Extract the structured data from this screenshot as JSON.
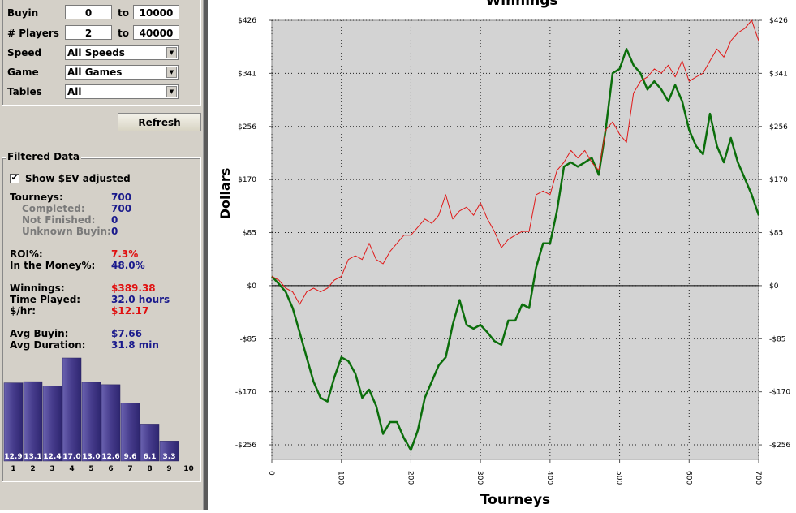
{
  "filters": {
    "ranges": [
      {
        "label": "Buyin",
        "from": "0",
        "to": "10000"
      },
      {
        "label": "# Players",
        "from": "2",
        "to": "40000"
      }
    ],
    "range_separator": "to",
    "selects": [
      {
        "label": "Speed",
        "value": "All Speeds"
      },
      {
        "label": "Game",
        "value": "All Games"
      },
      {
        "label": "Tables",
        "value": "All"
      }
    ],
    "button": "Refresh"
  },
  "filtered_data": {
    "title": "Filtered Data",
    "checkbox": {
      "label": "Show $EV adjusted",
      "checked": true
    },
    "stats": [
      [
        {
          "label": "Tourneys:",
          "value": "700",
          "color": "#1a1a8c"
        },
        {
          "label": "Completed:",
          "value": "700",
          "color": "#1a1a8c",
          "sub": true
        },
        {
          "label": "Not Finished:",
          "value": "0",
          "color": "#1a1a8c",
          "sub": true
        },
        {
          "label": "Unknown Buyin:",
          "value": "0",
          "color": "#1a1a8c",
          "sub": true
        }
      ],
      [
        {
          "label": "ROI%:",
          "value": "7.3%",
          "color": "#e01010"
        },
        {
          "label": "In the Money%:",
          "value": "48.0%",
          "color": "#1a1a8c"
        }
      ],
      [
        {
          "label": "Winnings:",
          "value": "$389.38",
          "color": "#e01010"
        },
        {
          "label": "Time Played:",
          "value": "32.0 hours",
          "color": "#1a1a8c"
        },
        {
          "label": "$/hr:",
          "value": "$12.17",
          "color": "#e01010"
        }
      ],
      [
        {
          "label": "Avg Buyin:",
          "value": "$7.66",
          "color": "#1a1a8c"
        },
        {
          "label": "Avg Duration:",
          "value": "31.8 min",
          "color": "#1a1a8c"
        }
      ]
    ],
    "histogram": {
      "type": "bar",
      "categories": [
        "1",
        "2",
        "3",
        "4",
        "5",
        "6",
        "7",
        "8",
        "9",
        "10"
      ],
      "values": [
        12.9,
        13.1,
        12.4,
        17.0,
        13.0,
        12.6,
        9.6,
        6.1,
        3.3,
        null
      ],
      "value_labels": [
        "12.9",
        "13.1",
        "12.4",
        "17.0",
        "13.0",
        "12.6",
        "9.6",
        "6.1",
        "3.3",
        null
      ],
      "color": "#463c8c"
    }
  },
  "chart_data": {
    "type": "line",
    "title": "Winnings",
    "x_label": "Tourneys",
    "y_label": "Dollars",
    "x": [
      0,
      10,
      20,
      30,
      40,
      50,
      60,
      70,
      80,
      90,
      100,
      110,
      120,
      130,
      140,
      150,
      160,
      170,
      180,
      190,
      200,
      210,
      220,
      230,
      240,
      250,
      260,
      270,
      280,
      290,
      300,
      310,
      320,
      330,
      340,
      350,
      360,
      370,
      380,
      390,
      400,
      410,
      420,
      430,
      440,
      450,
      460,
      470,
      480,
      490,
      500,
      510,
      520,
      530,
      540,
      550,
      560,
      570,
      580,
      590,
      600,
      610,
      620,
      630,
      640,
      650,
      660,
      670,
      680,
      690,
      700
    ],
    "series": [
      {
        "color": "#0b6e0b",
        "width": 2.5,
        "values": [
          15,
          3,
          -10,
          -36,
          -75,
          -115,
          -154,
          -180,
          -186,
          -147,
          -115,
          -121,
          -141,
          -180,
          -167,
          -193,
          -238,
          -219,
          -219,
          -245,
          -264,
          -232,
          -180,
          -154,
          -128,
          -115,
          -63,
          -23,
          -63,
          -69,
          -63,
          -75,
          -89,
          -95,
          -56,
          -56,
          -30,
          -36,
          29,
          68,
          68,
          120,
          191,
          198,
          191,
          198,
          205,
          178,
          250,
          341,
          348,
          380,
          354,
          341,
          315,
          328,
          315,
          296,
          322,
          296,
          250,
          224,
          211,
          276,
          224,
          198,
          237,
          198,
          172,
          146,
          113
        ]
      },
      {
        "color": "#e01818",
        "width": 1,
        "values": [
          15,
          9,
          -4,
          -10,
          -30,
          -10,
          -4,
          -10,
          -4,
          9,
          15,
          42,
          48,
          42,
          68,
          42,
          35,
          55,
          68,
          81,
          81,
          94,
          107,
          100,
          113,
          146,
          107,
          120,
          126,
          113,
          133,
          107,
          87,
          61,
          74,
          81,
          87,
          87,
          146,
          152,
          146,
          185,
          198,
          217,
          205,
          217,
          198,
          185,
          250,
          263,
          243,
          230,
          309,
          328,
          335,
          348,
          341,
          354,
          335,
          361,
          328,
          335,
          341,
          361,
          380,
          367,
          393,
          406,
          413,
          426,
          393
        ]
      }
    ],
    "xlim": [
      0,
      700
    ],
    "xticks": [
      0,
      100,
      200,
      300,
      400,
      500,
      600,
      700
    ],
    "ylim": [
      -279,
      426
    ],
    "yticks": [
      {
        "value": 426,
        "label": "$426"
      },
      {
        "value": 340.8,
        "label": "$341"
      },
      {
        "value": 255.6,
        "label": "$256"
      },
      {
        "value": 170.4,
        "label": "$170"
      },
      {
        "value": 85.2,
        "label": "$85"
      },
      {
        "value": 0,
        "label": "$0"
      },
      {
        "value": -85.2,
        "label": "-$85"
      },
      {
        "value": -170.4,
        "label": "-$170"
      },
      {
        "value": -255.6,
        "label": "-$256"
      }
    ],
    "grid": true,
    "zero_line": true
  }
}
